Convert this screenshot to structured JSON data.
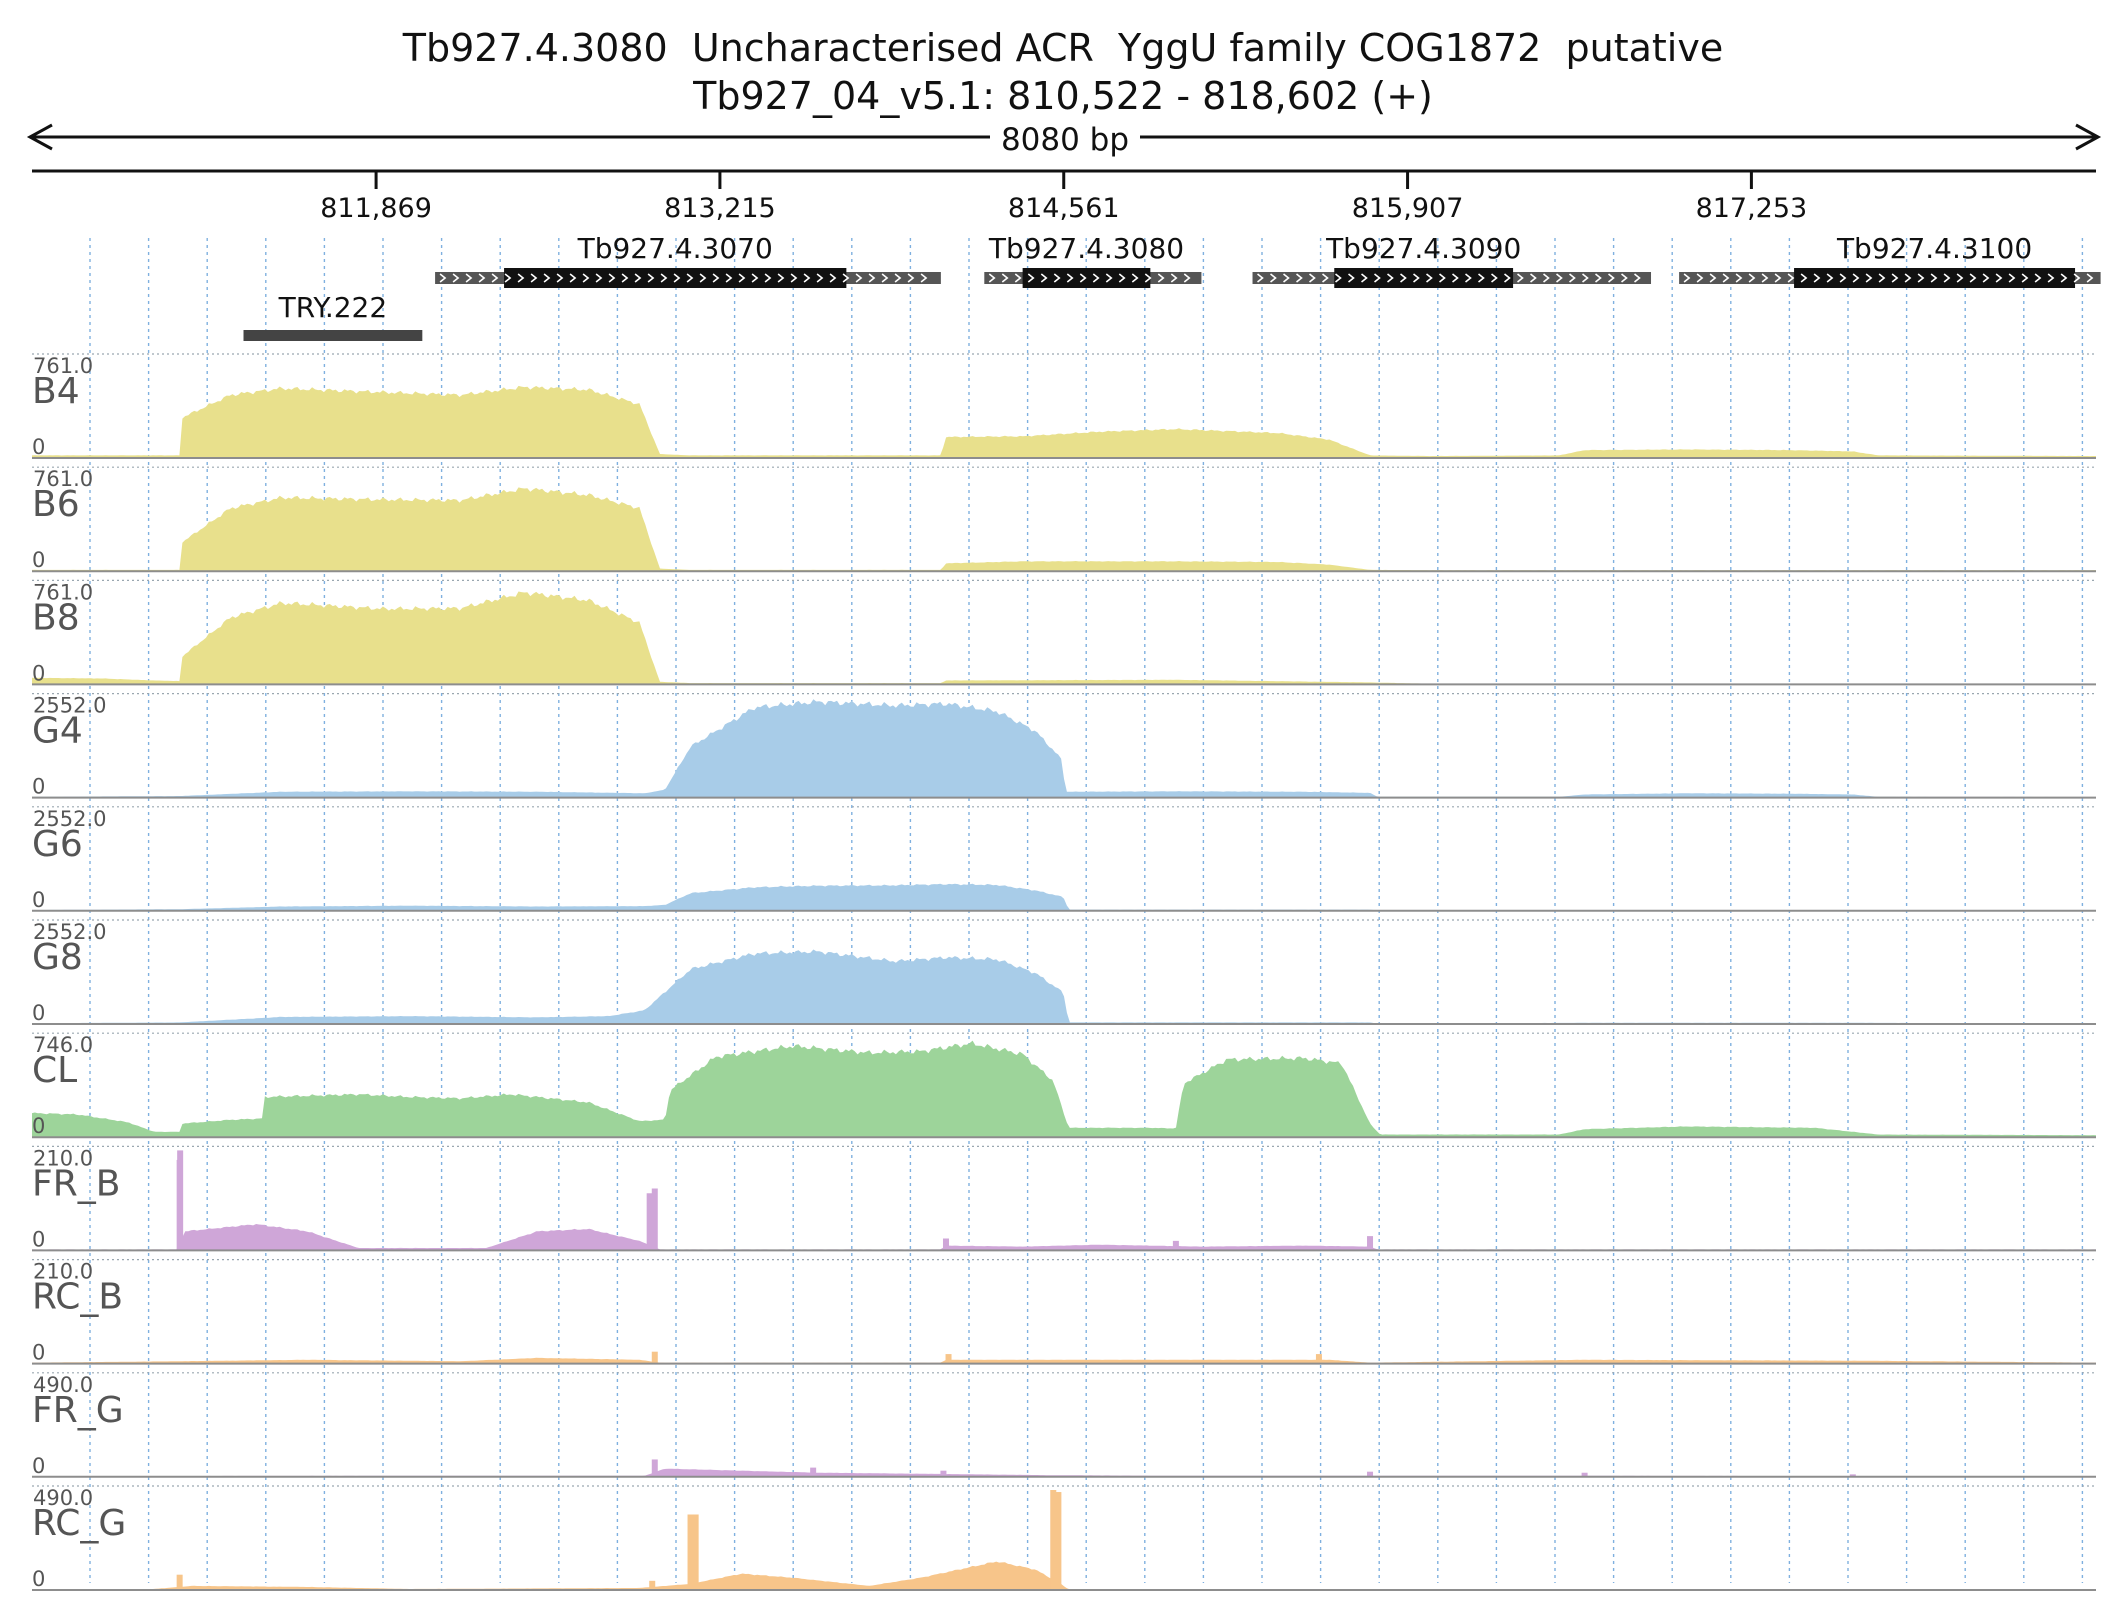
{
  "header": {
    "title": "Tb927.4.3080  Uncharacterised ACR  YggU family COG1872  putative",
    "location": "Tb927_04_v5.1: 810,522 - 818,602 (+)",
    "span_label": "8080 bp"
  },
  "chart_data": {
    "type": "area",
    "title": "Tb927.4.3080  Uncharacterised ACR  YggU family COG1872  putative",
    "chromosome": "Tb927_04_v5.1",
    "strand": "+",
    "xlim": [
      810522,
      818602
    ],
    "x_ticks": [
      811869,
      813215,
      814561,
      815907,
      817253
    ],
    "x_tick_labels": [
      "811,869",
      "813,215",
      "814,561",
      "815,907",
      "817,253"
    ],
    "grid": true,
    "genes": [
      {
        "name": "Tb927.4.3070",
        "utr_start": 812100,
        "cds_start": 812370,
        "cds_end": 813710,
        "utr_end": 814080
      },
      {
        "name": "Tb927.4.3080",
        "utr_start": 814250,
        "cds_start": 814400,
        "cds_end": 814900,
        "utr_end": 815100
      },
      {
        "name": "Tb927.4.3090",
        "utr_start": 815300,
        "cds_start": 815620,
        "cds_end": 816320,
        "utr_end": 816860
      },
      {
        "name": "Tb927.4.3100",
        "utr_start": 816970,
        "cds_start": 817420,
        "cds_end": 818520,
        "utr_end": 818620
      }
    ],
    "features": [
      {
        "name": "TRY.222",
        "start": 811350,
        "end": 812050
      }
    ],
    "tracks": [
      {
        "name": "B4",
        "max_label": "761.0",
        "min_label": "0",
        "max": 761,
        "color": "#e8e08c",
        "profile": [
          [
            810522,
            20
          ],
          [
            811100,
            20
          ],
          [
            811102,
            300
          ],
          [
            811300,
            480
          ],
          [
            811500,
            530
          ],
          [
            811900,
            500
          ],
          [
            812200,
            480
          ],
          [
            812450,
            540
          ],
          [
            812700,
            520
          ],
          [
            812900,
            410
          ],
          [
            812980,
            30
          ],
          [
            813100,
            20
          ],
          [
            814080,
            20
          ],
          [
            814100,
            160
          ],
          [
            814400,
            165
          ],
          [
            814700,
            200
          ],
          [
            815000,
            220
          ],
          [
            815400,
            190
          ],
          [
            815600,
            140
          ],
          [
            815760,
            20
          ],
          [
            816000,
            15
          ],
          [
            816500,
            20
          ],
          [
            816600,
            60
          ],
          [
            817000,
            65
          ],
          [
            817400,
            60
          ],
          [
            817650,
            50
          ],
          [
            817750,
            20
          ],
          [
            818602,
            15
          ]
        ]
      },
      {
        "name": "B6",
        "max_label": "761.0",
        "min_label": "0",
        "max": 761,
        "color": "#e8e08c",
        "profile": [
          [
            810522,
            10
          ],
          [
            811100,
            10
          ],
          [
            811102,
            210
          ],
          [
            811300,
            480
          ],
          [
            811500,
            560
          ],
          [
            811900,
            545
          ],
          [
            812200,
            540
          ],
          [
            812450,
            630
          ],
          [
            812700,
            580
          ],
          [
            812900,
            480
          ],
          [
            812980,
            20
          ],
          [
            813100,
            10
          ],
          [
            814080,
            10
          ],
          [
            814100,
            60
          ],
          [
            814400,
            75
          ],
          [
            815000,
            75
          ],
          [
            815400,
            70
          ],
          [
            815600,
            50
          ],
          [
            815760,
            10
          ],
          [
            816000,
            8
          ],
          [
            818602,
            8
          ]
        ]
      },
      {
        "name": "B8",
        "max_label": "761.0",
        "min_label": "0",
        "max": 761,
        "color": "#e8e08c",
        "profile": [
          [
            810522,
            50
          ],
          [
            810800,
            45
          ],
          [
            811000,
            30
          ],
          [
            811100,
            25
          ],
          [
            811102,
            200
          ],
          [
            811300,
            510
          ],
          [
            811500,
            620
          ],
          [
            811900,
            575
          ],
          [
            812200,
            580
          ],
          [
            812450,
            700
          ],
          [
            812700,
            640
          ],
          [
            812900,
            470
          ],
          [
            812980,
            20
          ],
          [
            813100,
            10
          ],
          [
            814080,
            10
          ],
          [
            814100,
            30
          ],
          [
            815000,
            35
          ],
          [
            815760,
            15
          ],
          [
            816000,
            5
          ],
          [
            818602,
            5
          ]
        ]
      },
      {
        "name": "G4",
        "max_label": "2552.0",
        "min_label": "0",
        "max": 2552,
        "color": "#a8cce8",
        "profile": [
          [
            810522,
            20
          ],
          [
            811100,
            40
          ],
          [
            811500,
            150
          ],
          [
            812000,
            160
          ],
          [
            812500,
            150
          ],
          [
            812920,
            110
          ],
          [
            813000,
            200
          ],
          [
            813100,
            1300
          ],
          [
            813350,
            2300
          ],
          [
            813600,
            2450
          ],
          [
            813900,
            2350
          ],
          [
            814100,
            2400
          ],
          [
            814300,
            2200
          ],
          [
            814450,
            1700
          ],
          [
            814550,
            1000
          ],
          [
            814570,
            150
          ],
          [
            815000,
            160
          ],
          [
            815500,
            150
          ],
          [
            815760,
            120
          ],
          [
            815790,
            20
          ],
          [
            816500,
            20
          ],
          [
            816600,
            80
          ],
          [
            817000,
            110
          ],
          [
            817400,
            100
          ],
          [
            817650,
            80
          ],
          [
            817750,
            20
          ],
          [
            818602,
            15
          ]
        ]
      },
      {
        "name": "G6",
        "max_label": "2552.0",
        "min_label": "0",
        "max": 2552,
        "color": "#a8cce8",
        "profile": [
          [
            810522,
            20
          ],
          [
            811100,
            40
          ],
          [
            811500,
            110
          ],
          [
            812000,
            130
          ],
          [
            812500,
            110
          ],
          [
            812920,
            120
          ],
          [
            813000,
            150
          ],
          [
            813100,
            450
          ],
          [
            813350,
            600
          ],
          [
            813600,
            640
          ],
          [
            813900,
            650
          ],
          [
            814100,
            680
          ],
          [
            814300,
            660
          ],
          [
            814450,
            520
          ],
          [
            814560,
            350
          ],
          [
            814580,
            30
          ],
          [
            815000,
            30
          ],
          [
            815760,
            30
          ],
          [
            815790,
            10
          ],
          [
            818602,
            10
          ]
        ]
      },
      {
        "name": "G8",
        "max_label": "2552.0",
        "min_label": "0",
        "max": 2552,
        "color": "#a8cce8",
        "profile": [
          [
            810522,
            20
          ],
          [
            811100,
            40
          ],
          [
            811500,
            180
          ],
          [
            812000,
            200
          ],
          [
            812500,
            170
          ],
          [
            812780,
            200
          ],
          [
            812920,
            350
          ],
          [
            813100,
            1400
          ],
          [
            813350,
            1800
          ],
          [
            813600,
            1850
          ],
          [
            813900,
            1600
          ],
          [
            814100,
            1700
          ],
          [
            814300,
            1650
          ],
          [
            814450,
            1300
          ],
          [
            814560,
            800
          ],
          [
            814580,
            40
          ],
          [
            815760,
            40
          ],
          [
            815790,
            10
          ],
          [
            816600,
            30
          ],
          [
            817700,
            30
          ],
          [
            818602,
            10
          ]
        ]
      },
      {
        "name": "CL",
        "max_label": "746.0",
        "min_label": "0",
        "max": 746,
        "color": "#9dd49a",
        "profile": [
          [
            810522,
            180
          ],
          [
            810700,
            170
          ],
          [
            810900,
            110
          ],
          [
            811000,
            40
          ],
          [
            811100,
            40
          ],
          [
            811102,
            100
          ],
          [
            811300,
            130
          ],
          [
            811430,
            140
          ],
          [
            811432,
            300
          ],
          [
            811800,
            320
          ],
          [
            812000,
            300
          ],
          [
            812200,
            290
          ],
          [
            812400,
            320
          ],
          [
            812700,
            260
          ],
          [
            812900,
            120
          ],
          [
            813000,
            130
          ],
          [
            813020,
            350
          ],
          [
            813200,
            600
          ],
          [
            813500,
            680
          ],
          [
            813800,
            630
          ],
          [
            814000,
            640
          ],
          [
            814200,
            700
          ],
          [
            814400,
            620
          ],
          [
            814520,
            420
          ],
          [
            814580,
            70
          ],
          [
            814900,
            70
          ],
          [
            815000,
            65
          ],
          [
            815030,
            400
          ],
          [
            815200,
            580
          ],
          [
            815500,
            590
          ],
          [
            815650,
            550
          ],
          [
            815760,
            100
          ],
          [
            815800,
            20
          ],
          [
            816500,
            20
          ],
          [
            816600,
            60
          ],
          [
            817000,
            80
          ],
          [
            817500,
            70
          ],
          [
            817750,
            20
          ],
          [
            818602,
            15
          ]
        ]
      },
      {
        "name": "FR_B",
        "max_label": "210.0",
        "min_label": "0",
        "max": 210,
        "color": "#cfa6d8",
        "spikes": [
          [
            811102,
            210
          ],
          [
            811100,
            190
          ],
          [
            812940,
            120
          ],
          [
            812960,
            130
          ],
          [
            814100,
            25
          ],
          [
            814600,
            10
          ],
          [
            815000,
            20
          ],
          [
            815760,
            30
          ]
        ],
        "profile": [
          [
            810522,
            2
          ],
          [
            811090,
            2
          ],
          [
            811120,
            40
          ],
          [
            811400,
            55
          ],
          [
            811600,
            40
          ],
          [
            811800,
            5
          ],
          [
            812300,
            5
          ],
          [
            812500,
            40
          ],
          [
            812700,
            45
          ],
          [
            812900,
            20
          ],
          [
            812980,
            2
          ],
          [
            814080,
            2
          ],
          [
            814100,
            10
          ],
          [
            814400,
            8
          ],
          [
            814700,
            12
          ],
          [
            815100,
            8
          ],
          [
            815500,
            10
          ],
          [
            815760,
            8
          ],
          [
            815790,
            2
          ],
          [
            818602,
            2
          ]
        ]
      },
      {
        "name": "RC_B",
        "max_label": "210.0",
        "min_label": "0",
        "max": 210,
        "color": "#f7c58a",
        "spikes": [
          [
            812960,
            25
          ],
          [
            814110,
            20
          ],
          [
            815560,
            20
          ]
        ],
        "profile": [
          [
            810522,
            2
          ],
          [
            811100,
            5
          ],
          [
            811600,
            8
          ],
          [
            812200,
            5
          ],
          [
            812500,
            12
          ],
          [
            812900,
            8
          ],
          [
            812980,
            2
          ],
          [
            814080,
            2
          ],
          [
            814100,
            8
          ],
          [
            815000,
            8
          ],
          [
            815600,
            8
          ],
          [
            815760,
            2
          ],
          [
            816600,
            8
          ],
          [
            817700,
            6
          ],
          [
            818602,
            2
          ]
        ]
      },
      {
        "name": "FR_G",
        "max_label": "490.0",
        "min_label": "0",
        "max": 490,
        "color": "#cfa6d8",
        "spikes": [
          [
            812960,
            85
          ],
          [
            813580,
            45
          ],
          [
            814090,
            30
          ],
          [
            815760,
            25
          ],
          [
            816600,
            20
          ],
          [
            817650,
            12
          ]
        ],
        "profile": [
          [
            810522,
            2
          ],
          [
            811100,
            4
          ],
          [
            812000,
            5
          ],
          [
            812920,
            5
          ],
          [
            813000,
            40
          ],
          [
            813300,
            30
          ],
          [
            813600,
            20
          ],
          [
            814000,
            15
          ],
          [
            814500,
            8
          ],
          [
            815000,
            5
          ],
          [
            815760,
            5
          ],
          [
            816600,
            5
          ],
          [
            818602,
            2
          ]
        ]
      },
      {
        "name": "RC_G",
        "max_label": "490.0",
        "min_label": "0",
        "max": 490,
        "color": "#f7c58a",
        "spikes": [
          [
            811100,
            75
          ],
          [
            812950,
            45
          ],
          [
            813100,
            370
          ],
          [
            813120,
            370
          ],
          [
            814520,
            490
          ],
          [
            814540,
            480
          ]
        ],
        "profile": [
          [
            810522,
            3
          ],
          [
            811000,
            5
          ],
          [
            811150,
            20
          ],
          [
            811600,
            15
          ],
          [
            812000,
            5
          ],
          [
            812900,
            10
          ],
          [
            813100,
            30
          ],
          [
            813300,
            80
          ],
          [
            813500,
            60
          ],
          [
            813800,
            20
          ],
          [
            814000,
            60
          ],
          [
            814300,
            140
          ],
          [
            814450,
            100
          ],
          [
            814550,
            30
          ],
          [
            814580,
            3
          ],
          [
            818602,
            2
          ]
        ]
      }
    ]
  }
}
